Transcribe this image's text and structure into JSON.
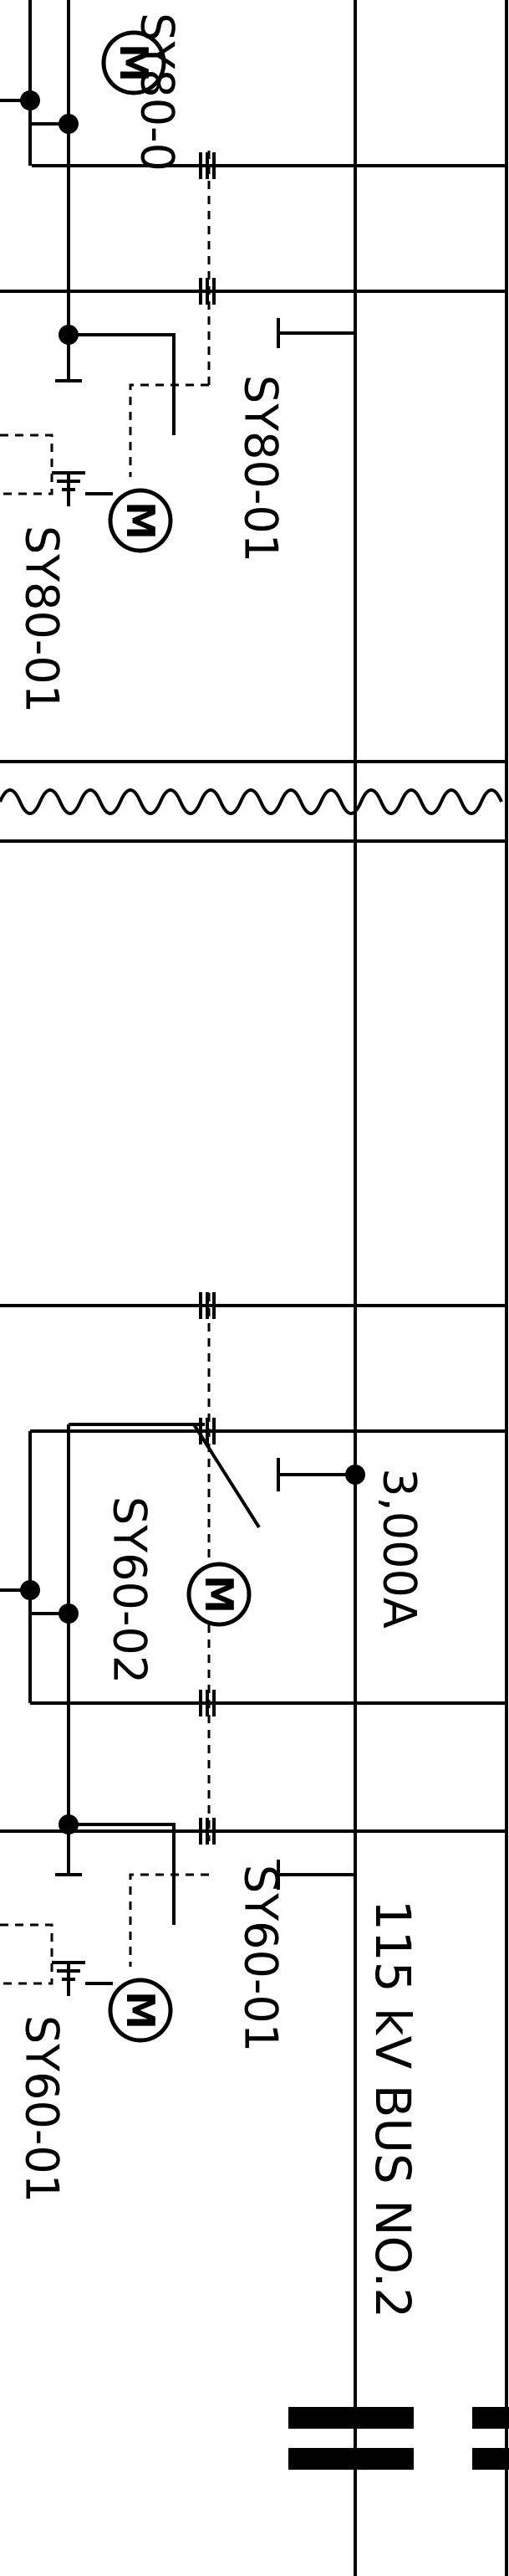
{
  "labels": {
    "motor_sy80_top": "SY80-0",
    "sw_sy80_01": "SY80-01",
    "motor_sy80_bottom": "SY80-01",
    "motor_sy60_02": "SY60-02",
    "rating": "3,000A",
    "sw_sy60_01": "SY60-01",
    "motor_sy60_01": "SY60-01",
    "bus_name": "115 kV BUS NO.2"
  },
  "motor_symbol": "M"
}
